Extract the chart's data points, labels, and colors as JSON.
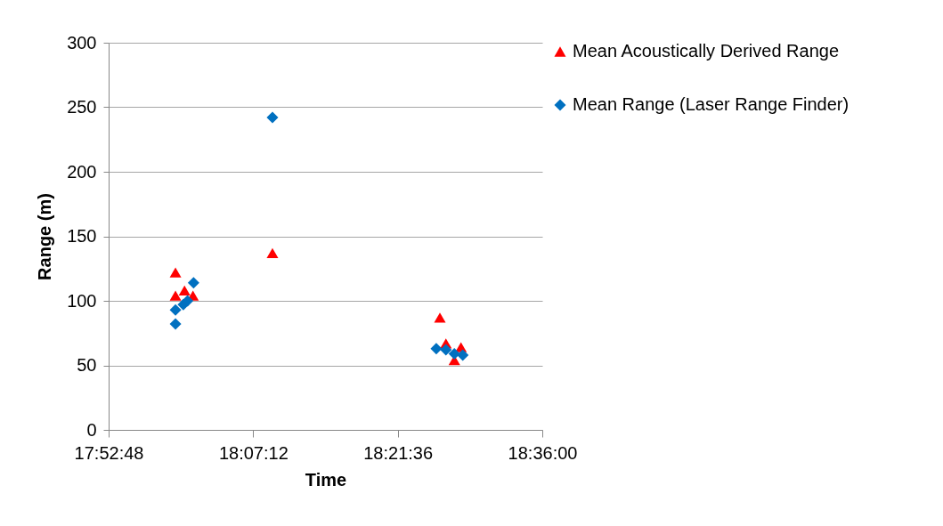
{
  "chart_data": {
    "type": "scatter",
    "xlabel": "Time",
    "ylabel": "Range (m)",
    "xlim": [
      17.88,
      18.6
    ],
    "xticks": [
      {
        "value": 17.88,
        "label": "17:52:48"
      },
      {
        "value": 18.12,
        "label": "18:07:12"
      },
      {
        "value": 18.36,
        "label": "18:21:36"
      },
      {
        "value": 18.6,
        "label": "18:36:00"
      }
    ],
    "ylim": [
      0,
      300
    ],
    "yticks": [
      0,
      50,
      100,
      150,
      200,
      250,
      300
    ],
    "grid": "y",
    "legend": "right",
    "series": [
      {
        "name": "Mean Acoustically Derived Range",
        "color": "#ff0000",
        "marker": "triangle",
        "x": [
          17.991,
          18.006,
          17.991,
          18.02,
          18.152,
          18.43,
          18.44,
          18.454,
          18.465
        ],
        "values": [
          122,
          108,
          104,
          104,
          137,
          87,
          67,
          54,
          64
        ]
      },
      {
        "name": "Mean Range (Laser Range Finder)",
        "color": "#0070c0",
        "marker": "diamond",
        "x": [
          17.991,
          17.991,
          18.004,
          18.011,
          18.021,
          18.152,
          18.424,
          18.44,
          18.454,
          18.468
        ],
        "values": [
          82,
          93,
          97,
          100,
          114,
          242,
          63,
          62,
          59,
          58
        ]
      }
    ]
  }
}
